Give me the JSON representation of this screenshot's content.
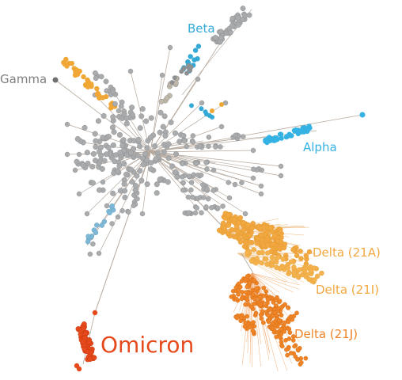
{
  "labels": {
    "beta": "Beta",
    "gamma": "Gamma",
    "alpha": "Alpha",
    "delta_21a": "Delta (21A)",
    "delta_21i": "Delta (21I)",
    "delta_21j": "Delta (21J)",
    "omicron": "Omicron"
  },
  "colors": {
    "background": "#ffffff",
    "branch": "#b5a89c",
    "node_gray": "#a9abad",
    "node_gray_dark": "#8e9092",
    "beta": "#35a9d6",
    "alpha": "#35b2e4",
    "gamma_label": "#7f7f7f",
    "gamma_node": "#f0a735",
    "delta_21a": "#f2a840",
    "delta_21i": "#f4b24d",
    "delta_21j": "#ef8527",
    "omicron": "#e64a1c"
  }
}
